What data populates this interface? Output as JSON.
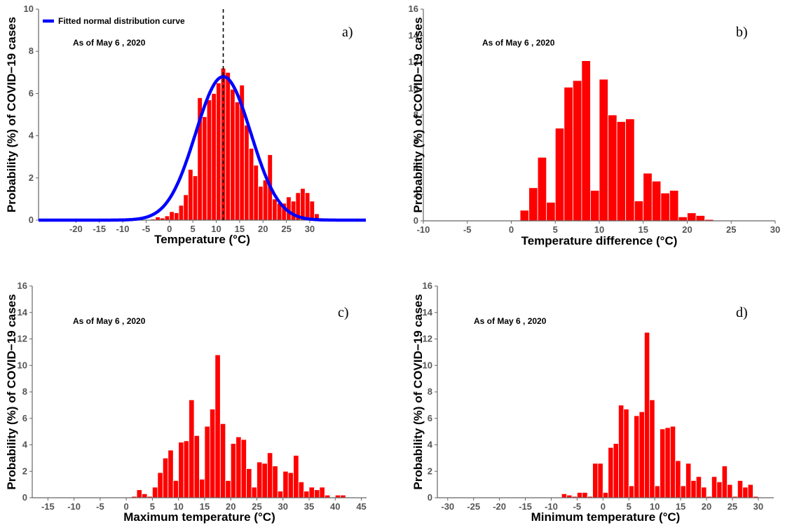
{
  "chart_data": [
    {
      "type": "bar",
      "panel_label": "a)",
      "annotation": "As of May 6 , 2020",
      "xlabel": "Temperature (°C)",
      "ylabel": "Probability (%) of COVID−19 cases",
      "xlim": [
        -28,
        42
      ],
      "ylim": [
        0,
        10
      ],
      "xticks": [
        -20,
        -15,
        -10,
        -5,
        0,
        5,
        10,
        15,
        20,
        25,
        30
      ],
      "yticks": [
        0,
        2,
        4,
        6,
        8,
        10
      ],
      "bin_width": 1,
      "bins": [
        {
          "x": -4,
          "v": 0.05
        },
        {
          "x": -3,
          "v": 0.15
        },
        {
          "x": -2,
          "v": 0.1
        },
        {
          "x": -1,
          "v": 0.2
        },
        {
          "x": 0,
          "v": 0.4
        },
        {
          "x": 1,
          "v": 0.35
        },
        {
          "x": 2,
          "v": 0.7
        },
        {
          "x": 3,
          "v": 1.2
        },
        {
          "x": 4,
          "v": 2.4
        },
        {
          "x": 5,
          "v": 2.1
        },
        {
          "x": 6,
          "v": 5.8
        },
        {
          "x": 7,
          "v": 4.9
        },
        {
          "x": 8,
          "v": 5.7
        },
        {
          "x": 9,
          "v": 6.0
        },
        {
          "x": 10,
          "v": 6.5
        },
        {
          "x": 11,
          "v": 7.2
        },
        {
          "x": 12,
          "v": 7.0
        },
        {
          "x": 13,
          "v": 6.2
        },
        {
          "x": 14,
          "v": 5.6
        },
        {
          "x": 15,
          "v": 6.4
        },
        {
          "x": 16,
          "v": 4.5
        },
        {
          "x": 17,
          "v": 3.4
        },
        {
          "x": 18,
          "v": 2.6
        },
        {
          "x": 19,
          "v": 1.6
        },
        {
          "x": 20,
          "v": 1.9
        },
        {
          "x": 21,
          "v": 3.1
        },
        {
          "x": 22,
          "v": 1.0
        },
        {
          "x": 23,
          "v": 0.8
        },
        {
          "x": 24,
          "v": 0.8
        },
        {
          "x": 25,
          "v": 1.1
        },
        {
          "x": 26,
          "v": 0.9
        },
        {
          "x": 27,
          "v": 1.3
        },
        {
          "x": 28,
          "v": 1.5
        },
        {
          "x": 29,
          "v": 1.3
        },
        {
          "x": 30,
          "v": 0.9
        },
        {
          "x": 31,
          "v": 0.3
        },
        {
          "x": 32,
          "v": 0.1
        }
      ],
      "curve": {
        "name": "Fitted normal distribution curve",
        "mean": 11.5,
        "sd": 5.9,
        "peak": 6.8,
        "color": "#0000ff"
      },
      "vline": 11.5,
      "legend": "top-left"
    },
    {
      "type": "bar",
      "panel_label": "b)",
      "annotation": "As of May 6 , 2020",
      "xlabel": "Temperature difference (°C)",
      "ylabel": "Probability (%) of COVID−19 cases",
      "xlim": [
        -10,
        30
      ],
      "ylim": [
        0,
        16
      ],
      "xticks": [
        -10,
        -5,
        0,
        5,
        10,
        15,
        20,
        25,
        30
      ],
      "yticks": [
        0,
        2,
        4,
        6,
        8,
        10,
        12,
        14,
        16
      ],
      "bin_width": 1,
      "bins": [
        {
          "x": 1,
          "v": 0.8
        },
        {
          "x": 2,
          "v": 2.5
        },
        {
          "x": 3,
          "v": 4.8
        },
        {
          "x": 4,
          "v": 1.4
        },
        {
          "x": 5,
          "v": 7.0
        },
        {
          "x": 6,
          "v": 10.1
        },
        {
          "x": 7,
          "v": 10.6
        },
        {
          "x": 8,
          "v": 12.1
        },
        {
          "x": 9,
          "v": 2.3
        },
        {
          "x": 10,
          "v": 10.7
        },
        {
          "x": 11,
          "v": 8.0
        },
        {
          "x": 12,
          "v": 7.5
        },
        {
          "x": 13,
          "v": 7.7
        },
        {
          "x": 14,
          "v": 1.5
        },
        {
          "x": 15,
          "v": 3.6
        },
        {
          "x": 16,
          "v": 3.0
        },
        {
          "x": 17,
          "v": 2.1
        },
        {
          "x": 18,
          "v": 2.3
        },
        {
          "x": 19,
          "v": 0.3
        },
        {
          "x": 20,
          "v": 0.6
        },
        {
          "x": 21,
          "v": 0.4
        },
        {
          "x": 22,
          "v": 0.1
        },
        {
          "x": 23,
          "v": 0.05
        }
      ]
    },
    {
      "type": "bar",
      "panel_label": "c)",
      "annotation": "As of May 6 , 2020",
      "xlabel": "Maximum temperature (°C)",
      "ylabel": "Probability (%) of COVID−19 cases",
      "xlim": [
        -18,
        46
      ],
      "ylim": [
        0,
        16
      ],
      "xticks": [
        -15,
        -10,
        -5,
        0,
        5,
        10,
        15,
        20,
        25,
        30,
        35,
        40,
        45
      ],
      "yticks": [
        0,
        2,
        4,
        6,
        8,
        10,
        12,
        14,
        16
      ],
      "bin_width": 1,
      "bins": [
        {
          "x": 0,
          "v": 0.05
        },
        {
          "x": 1,
          "v": 0.1
        },
        {
          "x": 2,
          "v": 0.6
        },
        {
          "x": 3,
          "v": 0.3
        },
        {
          "x": 4,
          "v": 0.1
        },
        {
          "x": 5,
          "v": 0.8
        },
        {
          "x": 6,
          "v": 1.9
        },
        {
          "x": 7,
          "v": 3.0
        },
        {
          "x": 8,
          "v": 3.6
        },
        {
          "x": 9,
          "v": 1.3
        },
        {
          "x": 10,
          "v": 4.2
        },
        {
          "x": 11,
          "v": 4.3
        },
        {
          "x": 12,
          "v": 7.4
        },
        {
          "x": 13,
          "v": 4.7
        },
        {
          "x": 14,
          "v": 1.4
        },
        {
          "x": 15,
          "v": 5.4
        },
        {
          "x": 16,
          "v": 6.7
        },
        {
          "x": 17,
          "v": 10.8
        },
        {
          "x": 18,
          "v": 5.6
        },
        {
          "x": 19,
          "v": 1.3
        },
        {
          "x": 20,
          "v": 4.1
        },
        {
          "x": 21,
          "v": 4.6
        },
        {
          "x": 22,
          "v": 4.4
        },
        {
          "x": 23,
          "v": 2.2
        },
        {
          "x": 24,
          "v": 0.8
        },
        {
          "x": 25,
          "v": 2.7
        },
        {
          "x": 26,
          "v": 2.6
        },
        {
          "x": 27,
          "v": 3.4
        },
        {
          "x": 28,
          "v": 2.4
        },
        {
          "x": 29,
          "v": 0.5
        },
        {
          "x": 30,
          "v": 2.0
        },
        {
          "x": 31,
          "v": 1.9
        },
        {
          "x": 32,
          "v": 3.2
        },
        {
          "x": 33,
          "v": 1.2
        },
        {
          "x": 34,
          "v": 0.5
        },
        {
          "x": 35,
          "v": 0.8
        },
        {
          "x": 36,
          "v": 0.6
        },
        {
          "x": 37,
          "v": 0.8
        },
        {
          "x": 38,
          "v": 0.2
        },
        {
          "x": 39,
          "v": 0.05
        },
        {
          "x": 40,
          "v": 0.2
        },
        {
          "x": 41,
          "v": 0.2
        },
        {
          "x": 42,
          "v": 0.05
        }
      ]
    },
    {
      "type": "bar",
      "panel_label": "d)",
      "annotation": "As of May 6 , 2020",
      "xlabel": "Minimum temperature (°C)",
      "ylabel": "Probability (%) of COVID−19 cases",
      "xlim": [
        -32,
        33
      ],
      "ylim": [
        0,
        16
      ],
      "xticks": [
        -30,
        -25,
        -20,
        -15,
        -10,
        -5,
        0,
        5,
        10,
        15,
        20,
        25,
        30
      ],
      "yticks": [
        0,
        2,
        4,
        6,
        8,
        10,
        12,
        14,
        16
      ],
      "bin_width": 1,
      "bins": [
        {
          "x": -9,
          "v": 0.05
        },
        {
          "x": -8,
          "v": 0.3
        },
        {
          "x": -7,
          "v": 0.2
        },
        {
          "x": -6,
          "v": 0.1
        },
        {
          "x": -5,
          "v": 0.4
        },
        {
          "x": -4,
          "v": 0.4
        },
        {
          "x": -3,
          "v": 0.1
        },
        {
          "x": -2,
          "v": 2.6
        },
        {
          "x": -1,
          "v": 2.6
        },
        {
          "x": 0,
          "v": 0.4
        },
        {
          "x": 1,
          "v": 3.8
        },
        {
          "x": 2,
          "v": 4.1
        },
        {
          "x": 3,
          "v": 7.0
        },
        {
          "x": 4,
          "v": 6.7
        },
        {
          "x": 5,
          "v": 0.9
        },
        {
          "x": 6,
          "v": 6.2
        },
        {
          "x": 7,
          "v": 6.5
        },
        {
          "x": 8,
          "v": 12.5
        },
        {
          "x": 9,
          "v": 7.4
        },
        {
          "x": 10,
          "v": 0.9
        },
        {
          "x": 11,
          "v": 5.2
        },
        {
          "x": 12,
          "v": 5.3
        },
        {
          "x": 13,
          "v": 5.4
        },
        {
          "x": 14,
          "v": 2.8
        },
        {
          "x": 15,
          "v": 0.9
        },
        {
          "x": 16,
          "v": 2.6
        },
        {
          "x": 17,
          "v": 1.3
        },
        {
          "x": 18,
          "v": 1.6
        },
        {
          "x": 19,
          "v": 0.8
        },
        {
          "x": 20,
          "v": 0.1
        },
        {
          "x": 21,
          "v": 1.6
        },
        {
          "x": 22,
          "v": 1.2
        },
        {
          "x": 23,
          "v": 2.4
        },
        {
          "x": 24,
          "v": 1.0
        },
        {
          "x": 25,
          "v": 0.1
        },
        {
          "x": 26,
          "v": 1.3
        },
        {
          "x": 27,
          "v": 0.8
        },
        {
          "x": 28,
          "v": 1.0
        },
        {
          "x": 29,
          "v": 0.1
        },
        {
          "x": 30,
          "v": 0.05
        }
      ]
    }
  ],
  "colors": {
    "bar": "#ff0000",
    "bar_edge": "#ffffff",
    "curve": "#0000ff",
    "axis": "#666666"
  }
}
